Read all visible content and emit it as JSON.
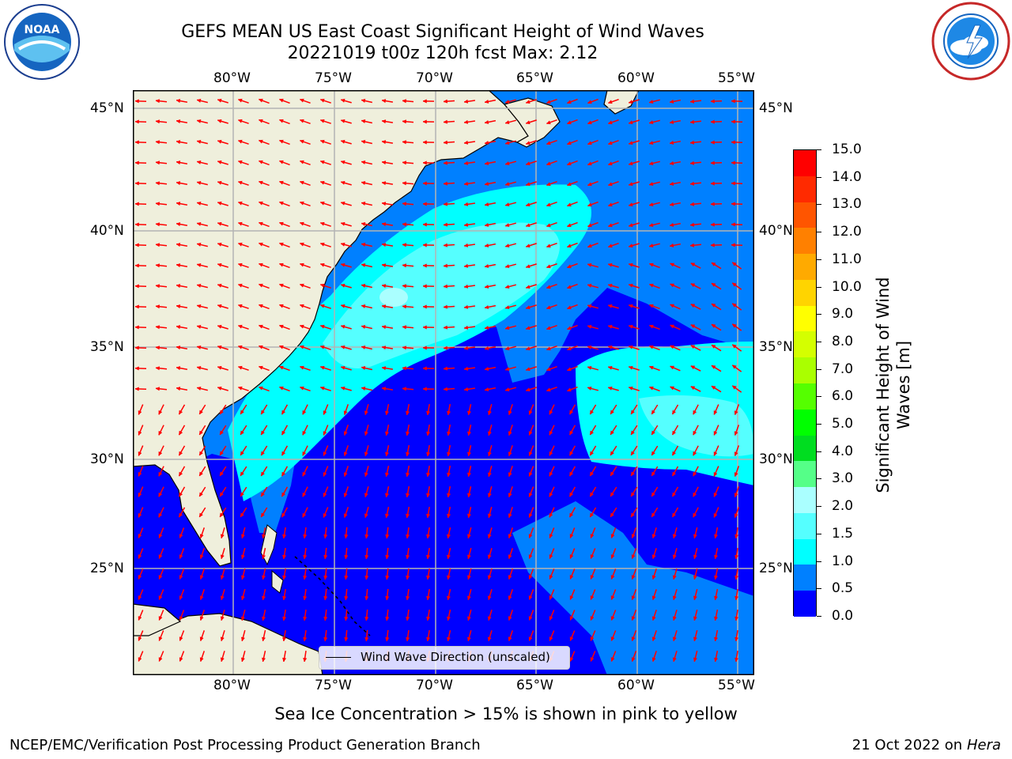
{
  "header": {
    "title": "GEFS MEAN US East Coast Significant Height of Wind Waves",
    "subtitle": "20221019 t00z 120h fcst   Max: 2.12"
  },
  "logos": {
    "left": {
      "text": "NOAA",
      "icon": "noaa-logo-icon"
    },
    "right": {
      "icon": "nws-logo-icon"
    }
  },
  "map": {
    "lon_labels": [
      "80°W",
      "75°W",
      "70°W",
      "65°W",
      "60°W",
      "55°W"
    ],
    "lat_labels": [
      "45°N",
      "40°N",
      "35°N",
      "30°N",
      "25°N"
    ],
    "legend": "Wind Wave Direction (unscaled)"
  },
  "colorbar": {
    "label": "Significant Height of Wind Waves [m]",
    "ticks": [
      "15.0",
      "14.0",
      "13.0",
      "12.0",
      "11.0",
      "10.0",
      "9.0",
      "8.0",
      "7.0",
      "6.0",
      "5.0",
      "4.0",
      "3.0",
      "2.0",
      "1.5",
      "1.0",
      "0.5",
      "0.0"
    ],
    "colors": [
      "#ff0000",
      "#ff2a00",
      "#ff5500",
      "#ff8000",
      "#ffaa00",
      "#ffd400",
      "#ffff00",
      "#d4ff00",
      "#aaff00",
      "#55ff00",
      "#00ff00",
      "#00dd20",
      "#55ff88",
      "#aaffff",
      "#55ffff",
      "#00ffff",
      "#0080ff",
      "#0000ff"
    ]
  },
  "note": "Sea Ice Concentration > 15% is shown in pink to yellow",
  "footer": {
    "left": "NCEP/EMC/Verification Post Processing Product Generation Branch",
    "date": "21 Oct 2022 on ",
    "machine": "Hera"
  }
}
